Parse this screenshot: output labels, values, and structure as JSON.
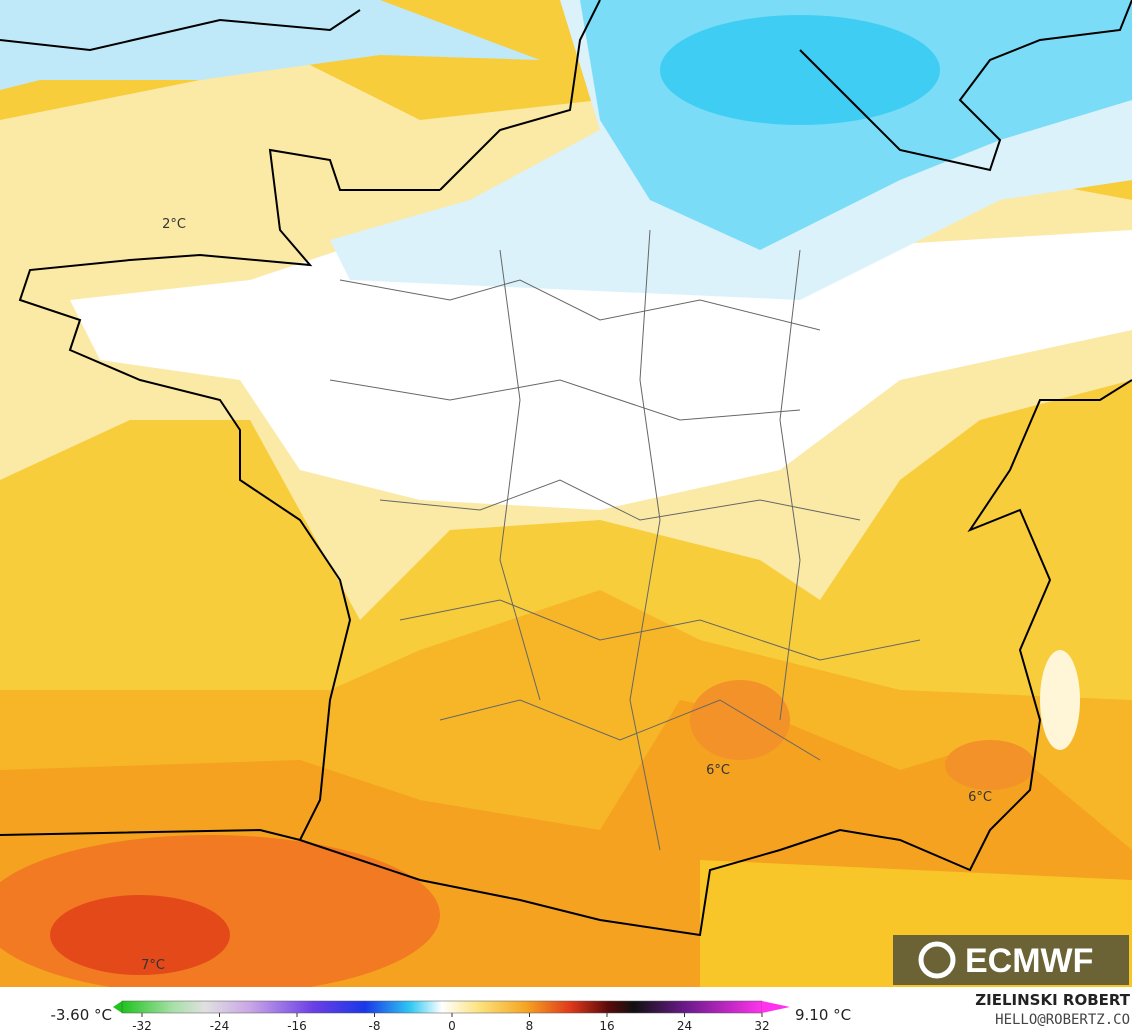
{
  "map": {
    "labels": [
      "2°C",
      "6°C",
      "6°C",
      "7°C"
    ]
  },
  "logo": {
    "text": "ECMWF"
  },
  "colorbar": {
    "min_label": "-3.60 °C",
    "max_label": "9.10 °C",
    "ticks": [
      -32,
      -24,
      -16,
      -8,
      0,
      8,
      16,
      24,
      32
    ]
  },
  "credit": {
    "name": "ZIELINSKI ROBERT",
    "email": "HELLO@ROBERTZ.CO"
  }
}
